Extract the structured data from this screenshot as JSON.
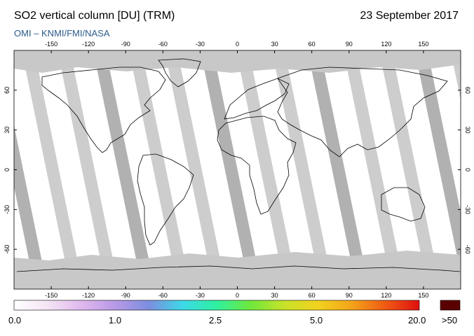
{
  "header": {
    "title": "SO2 vertical column [DU] (TRM)",
    "subtitle": "OMI  –  KNMI/FMI/NASA",
    "date": "23 September 2017"
  },
  "map": {
    "lon_ticks": [
      "-150",
      "-120",
      "-90",
      "-60",
      "-30",
      "0",
      "30",
      "60",
      "90",
      "120",
      "150"
    ],
    "lat_ticks": [
      "60",
      "30",
      "0",
      "-30",
      "-60"
    ],
    "lon_range": [
      -180,
      180
    ],
    "lat_range": [
      -90,
      90
    ],
    "projection": "equirectangular",
    "orbit_band_count": 14,
    "colors": {
      "no_data": "#c8c8c8",
      "orbit_gap": "#a9a9a9",
      "land_outline": "#000000",
      "background_low": "#ffffff"
    }
  },
  "colorbar": {
    "labels": [
      "0.0",
      "1.0",
      "2.5",
      "5.0",
      "20.0"
    ],
    "overflow_label": ">50",
    "overflow_color": "#5a0000",
    "gradient": [
      "#ffffff",
      "#f4e4f4",
      "#e0b8ee",
      "#b79ae6",
      "#7c8ee0",
      "#3dd9e8",
      "#2ef0a0",
      "#6fe83c",
      "#c8e22a",
      "#f2d21e",
      "#f4a31a",
      "#ef5a14",
      "#e01010"
    ]
  }
}
